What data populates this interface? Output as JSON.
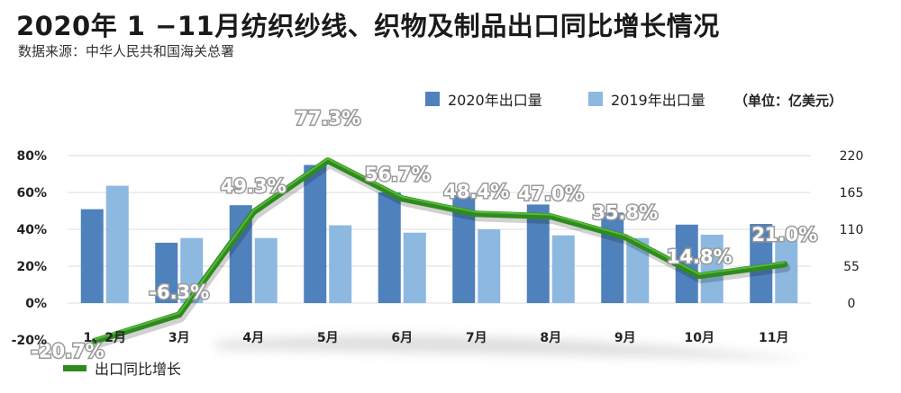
{
  "title": "2020年 1 −11月纺织纱线、织物及制品出口同比增长情况",
  "source": "数据来源：中华人民共和国海关总署",
  "legend": {
    "series_2020": "2020年出口量",
    "series_2019": "2019年出口量",
    "unit": "（单位：亿美元）",
    "growth": "出口同比增长"
  },
  "colors": {
    "bar_2020": "#4f81bd",
    "bar_2019": "#8db8e0",
    "growth_line": "#2e8b1e",
    "growth_line_light": "#58b83a"
  },
  "chart_data": {
    "type": "bar",
    "categories": [
      "1、2月",
      "3月",
      "4月",
      "5月",
      "6月",
      "7月",
      "8月",
      "9月",
      "10月",
      "11月"
    ],
    "series": [
      {
        "name": "2020年出口量",
        "axis": "right",
        "values": [
          140,
          90,
          146,
          206,
          165,
          159,
          147,
          135,
          117,
          118
        ]
      },
      {
        "name": "2019年出口量",
        "axis": "right",
        "values": [
          175,
          97,
          97,
          116,
          105,
          110,
          101,
          97,
          102,
          97
        ]
      },
      {
        "name": "出口同比增长",
        "type": "line",
        "axis": "left",
        "values": [
          -20.7,
          -6.3,
          49.3,
          77.3,
          56.7,
          48.4,
          47.0,
          35.8,
          14.8,
          21.0
        ]
      }
    ],
    "pct_labels": [
      "-20.7%",
      "-6.3%",
      "49.3%",
      "77.3%",
      "56.7%",
      "48.4%",
      "47.0%",
      "35.8%",
      "14.8%",
      "21.0%"
    ],
    "y_left": {
      "min": -20,
      "max": 80,
      "ticks": [
        "80%",
        "60%",
        "40%",
        "20%",
        "0%",
        "-20%"
      ]
    },
    "y_right": {
      "min": 0,
      "max": 220,
      "ticks": [
        "220",
        "165",
        "110",
        "55",
        "0"
      ]
    }
  }
}
